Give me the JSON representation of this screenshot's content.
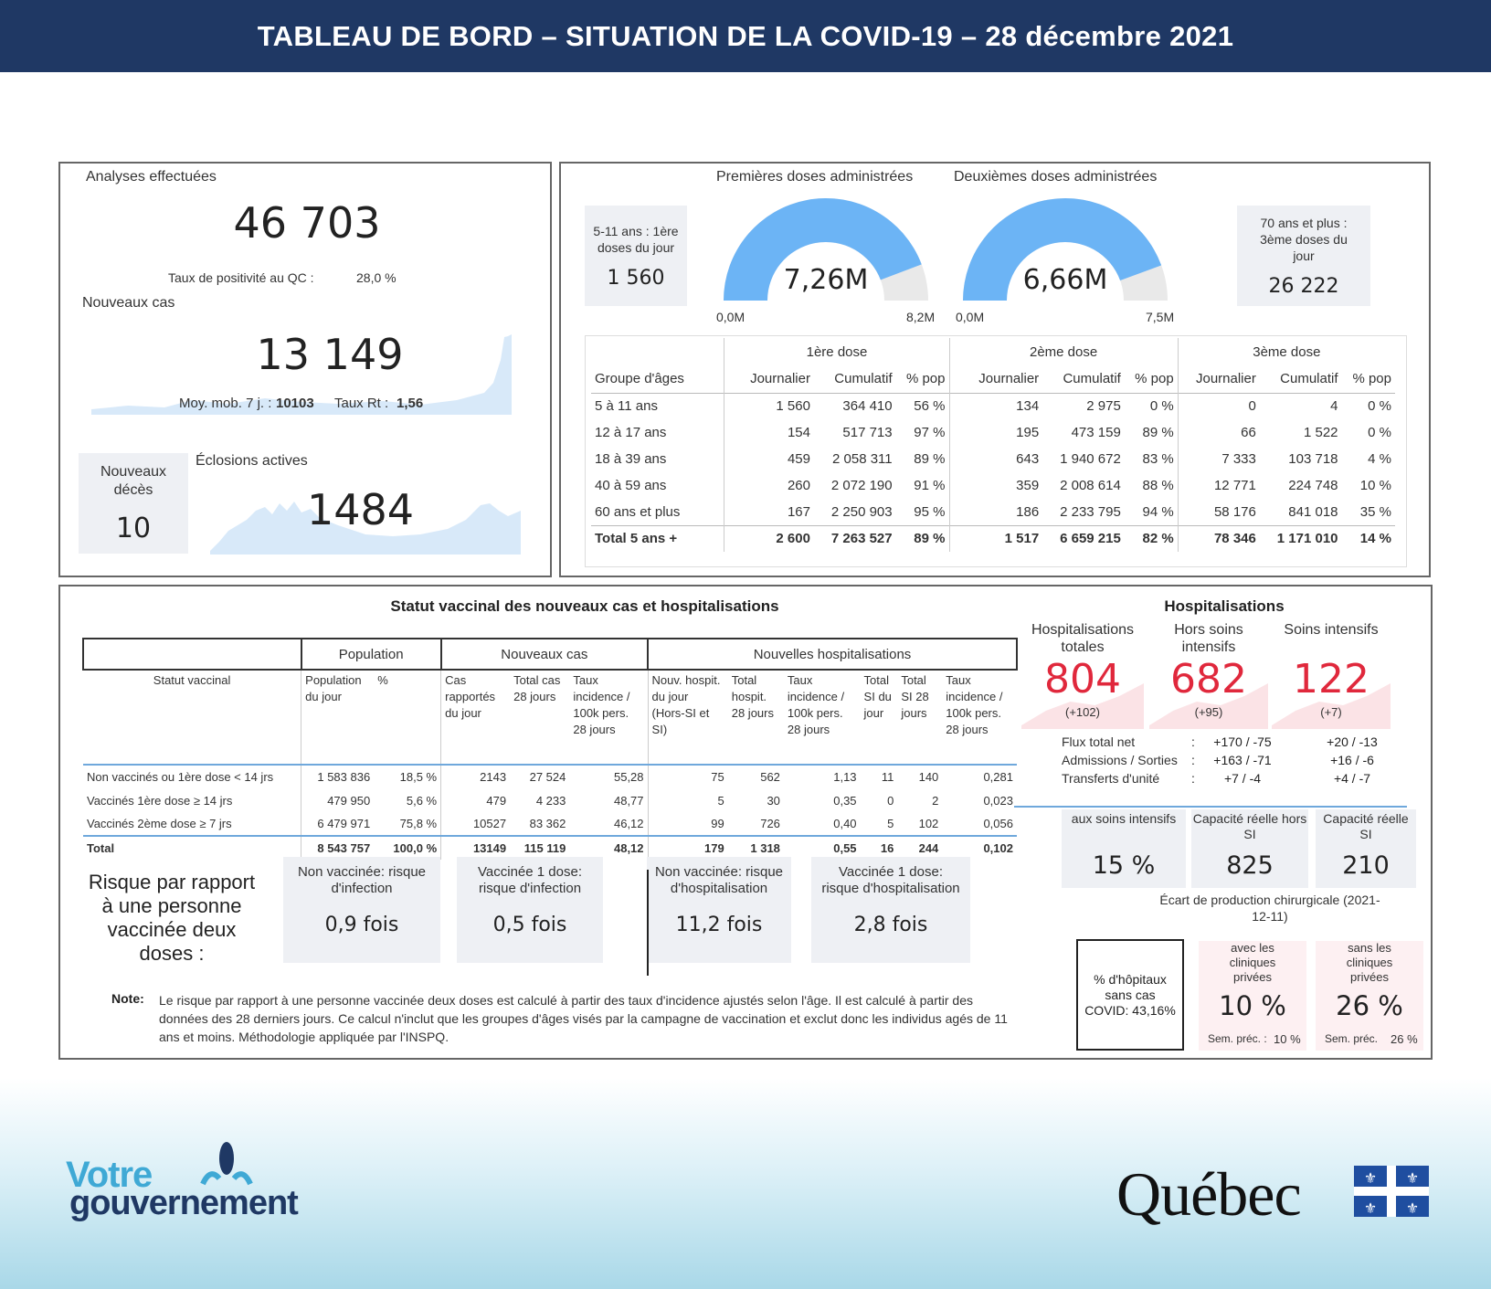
{
  "header": {
    "title": "TABLEAU DE BORD – SITUATION DE LA COVID-19 – 28 décembre 2021"
  },
  "tests": {
    "label": "Analyses effectuées",
    "value": "46 703",
    "positivity_label": "Taux de positivité au QC :",
    "positivity_value": "28,0 %"
  },
  "new_cases": {
    "label": "Nouveaux cas",
    "value": "13 149",
    "avg_label": "Moy. mob. 7 j. :",
    "avg_value": "10103",
    "rt_label": "Taux Rt :",
    "rt_value": "1,56"
  },
  "deaths": {
    "label": "Nouveaux décès",
    "value": "10"
  },
  "outbreaks": {
    "label": "Éclosions actives",
    "value": "1484"
  },
  "vacc_kpi": {
    "kid_label": "5-11 ans : 1ère doses du jour",
    "kid_value": "1 560",
    "senior_label": "70 ans et plus : 3ème doses du jour",
    "senior_value": "26 222",
    "gauge1": {
      "title": "Premières doses administrées",
      "value": "7,26M",
      "min": "0,0M",
      "max": "8,2M",
      "fraction": 0.885,
      "color": "#6cb4f5"
    },
    "gauge2": {
      "title": "Deuxièmes doses administrées",
      "value": "6,66M",
      "min": "0,0M",
      "max": "7,5M",
      "fraction": 0.888,
      "color": "#6cb4f5"
    }
  },
  "vacc_table": {
    "groups": [
      "1ère dose",
      "2ème dose",
      "3ème dose"
    ],
    "headers": [
      "Groupe d'âges",
      "Journalier",
      "Cumulatif",
      "% pop",
      "Journalier",
      "Cumulatif",
      "% pop",
      "Journalier",
      "Cumulatif",
      "% pop"
    ],
    "rows": [
      [
        "5 à 11 ans",
        "1 560",
        "364 410",
        "56 %",
        "134",
        "2 975",
        "0 %",
        "0",
        "4",
        "0 %"
      ],
      [
        "12 à 17 ans",
        "154",
        "517 713",
        "97 %",
        "195",
        "473 159",
        "89 %",
        "66",
        "1 522",
        "0 %"
      ],
      [
        "18 à 39 ans",
        "459",
        "2 058 311",
        "89 %",
        "643",
        "1 940 672",
        "83 %",
        "7 333",
        "103 718",
        "4 %"
      ],
      [
        "40 à 59 ans",
        "260",
        "2 072 190",
        "91 %",
        "359",
        "2 008 614",
        "88 %",
        "12 771",
        "224 748",
        "10 %"
      ],
      [
        "60 ans et plus",
        "167",
        "2 250 903",
        "95 %",
        "186",
        "2 233 795",
        "94 %",
        "58 176",
        "841 018",
        "35 %"
      ]
    ],
    "total": [
      "Total 5 ans +",
      "2 600",
      "7 263 527",
      "89 %",
      "1 517",
      "6 659 215",
      "82 %",
      "78 346",
      "1 171 010",
      "14 %"
    ]
  },
  "status": {
    "title": "Statut vaccinal des nouveaux cas et hospitalisations",
    "groups": [
      "Population",
      "Nouveaux cas",
      "Nouvelles hospitalisations"
    ],
    "headers": [
      "Statut vaccinal",
      "Population du jour",
      "%",
      "Cas rapportés du jour",
      "Total cas 28 jours",
      "Taux incidence / 100k pers. 28 jours",
      "Nouv. hospit. du jour (Hors-SI et SI)",
      "Total hospit. 28 jours",
      "Taux incidence / 100k pers. 28 jours",
      "Total SI du jour",
      "Total SI 28 jours",
      "Taux incidence / 100k pers. 28 jours"
    ],
    "rows": [
      [
        "Non vaccinés ou 1ère dose < 14 jrs",
        "1 583 836",
        "18,5 %",
        "2143",
        "27 524",
        "55,28",
        "75",
        "562",
        "1,13",
        "11",
        "140",
        "0,281"
      ],
      [
        "Vaccinés 1ère dose ≥ 14 jrs",
        "479 950",
        "5,6 %",
        "479",
        "4 233",
        "48,77",
        "5",
        "30",
        "0,35",
        "0",
        "2",
        "0,023"
      ],
      [
        "Vaccinés 2ème dose ≥ 7 jrs",
        "6 479 971",
        "75,8 %",
        "10527",
        "83 362",
        "46,12",
        "99",
        "726",
        "0,40",
        "5",
        "102",
        "0,056"
      ]
    ],
    "total": [
      "Total",
      "8 543 757",
      "100,0 %",
      "13149",
      "115 119",
      "48,12",
      "179",
      "1 318",
      "0,55",
      "16",
      "244",
      "0,102"
    ]
  },
  "risk": {
    "title": "Risque par rapport à une personne vaccinée deux doses :",
    "cards": [
      {
        "label": "Non vaccinée: risque d'infection",
        "value": "0,9 fois"
      },
      {
        "label": "Vaccinée 1 dose: risque d'infection",
        "value": "0,5 fois"
      },
      {
        "label": "Non vaccinée: risque d'hospitalisation",
        "value": "11,2 fois"
      },
      {
        "label": "Vaccinée 1 dose: risque d'hospitalisation",
        "value": "2,8 fois"
      }
    ],
    "note_label": "Note:",
    "note": "Le risque par rapport à une personne vaccinée deux doses est calculé à partir des taux d'incidence ajustés selon l'âge.  Il est calculé à partir des données des 28 derniers jours.  Ce calcul n'inclut que les groupes d'âges visés par la campagne de vaccination et exclut donc les individus agés de 11 ans et moins. Méthodologie appliquée par l'INSPQ."
  },
  "hosp": {
    "title": "Hospitalisations",
    "kpis": [
      {
        "label": "Hospitalisations totales",
        "value": "804",
        "delta": "(+102)"
      },
      {
        "label": "Hors soins intensifs",
        "value": "682",
        "delta": "(+95)"
      },
      {
        "label": "Soins intensifs",
        "value": "122",
        "delta": "(+7)"
      }
    ],
    "flows": [
      {
        "label": "Flux total net",
        "sep": ":",
        "a": "+170 / -75",
        "b": "+20 / -13"
      },
      {
        "label": "Admissions / Sorties",
        "sep": ":",
        "a": "+163 / -71",
        "b": "+16 / -6"
      },
      {
        "label": "Transferts d'unité",
        "sep": ":",
        "a": "+7 / -4",
        "b": "+4 / -7"
      }
    ],
    "cap": [
      {
        "label": "aux soins intensifs",
        "value": "15 %"
      },
      {
        "label": "Capacité réelle hors SI",
        "value": "825"
      },
      {
        "label": "Capacité réelle SI",
        "value": "210"
      }
    ],
    "surgery_title": "Écart de production chirurgicale (2021-12-11)",
    "surg": [
      {
        "label": "avec les cliniques privées",
        "value": "10 %",
        "prev_label": "Sem. préc. :",
        "prev": "10 %"
      },
      {
        "label": "sans les cliniques privées",
        "value": "26 %",
        "prev_label": "Sem. préc.",
        "prev": "26 %"
      }
    ],
    "nocovid": "% d'hôpitaux sans cas COVID: 43,16%"
  },
  "footer": {
    "votre": "Votre",
    "gouvernement": "gouvernement",
    "quebec": "Québec"
  }
}
